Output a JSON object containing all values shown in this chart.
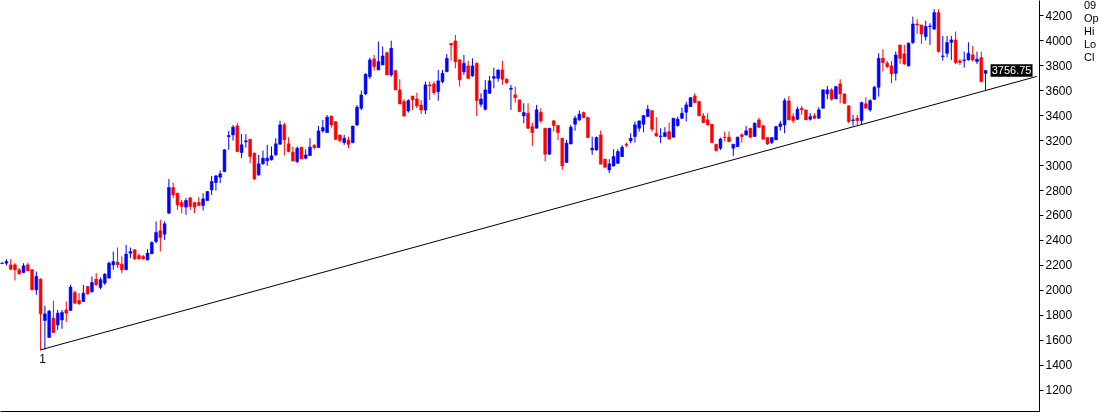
{
  "chart_data": {
    "type": "candlestick",
    "categories": [
      null,
      null,
      null,
      null,
      null,
      null,
      null,
      null,
      null,
      null,
      null,
      null,
      null,
      null,
      null,
      null,
      null,
      null,
      null,
      null,
      null,
      null,
      null,
      null,
      null,
      null,
      null,
      null,
      null,
      null,
      null,
      null,
      null,
      null,
      null,
      null,
      null,
      null,
      null,
      null,
      null,
      null,
      null,
      null,
      null,
      null,
      null,
      null,
      null,
      null,
      null,
      null,
      null,
      null,
      null,
      null,
      null,
      null,
      null,
      null,
      null,
      null,
      null,
      null,
      null,
      null,
      null,
      null,
      null,
      null,
      null,
      null,
      null,
      null,
      null,
      null,
      null,
      null,
      null,
      null,
      null,
      null,
      null,
      null,
      null,
      null,
      null,
      null,
      null,
      null,
      null,
      null,
      null,
      null,
      null,
      null,
      null,
      null,
      null,
      null,
      null,
      null,
      null,
      null,
      null,
      null,
      null,
      null,
      null,
      null,
      null,
      null,
      null,
      null,
      null,
      null,
      null,
      null,
      null,
      null,
      null,
      null,
      null,
      null,
      null,
      null,
      null,
      null,
      null,
      null,
      null,
      null,
      null,
      null,
      null,
      null,
      null,
      null,
      null,
      null,
      null,
      null,
      null,
      null,
      null,
      null,
      null,
      null,
      null,
      null,
      null,
      null,
      null,
      null,
      null,
      null,
      null,
      null,
      null,
      null,
      null,
      null,
      null,
      null,
      null,
      null,
      null,
      null,
      null,
      null,
      null,
      null,
      null,
      null,
      null,
      null,
      null,
      null,
      null,
      null,
      null,
      null,
      null,
      null,
      null,
      null,
      null,
      null,
      null,
      null,
      null,
      null,
      null,
      null,
      null,
      null,
      null,
      null,
      null,
      null,
      null,
      null,
      null,
      null,
      null,
      null,
      null,
      null,
      null,
      null,
      null,
      null,
      null,
      null,
      null,
      null,
      null,
      null,
      null,
      null,
      null,
      null,
      null,
      null,
      null,
      null,
      null,
      null,
      null,
      null,
      null,
      null,
      null,
      null,
      null,
      null,
      null,
      null,
      null,
      null,
      null,
      null,
      null
    ],
    "ohlc": [
      [
        2212,
        2220,
        2208,
        2215
      ],
      [
        2214,
        2246,
        2195,
        2228
      ],
      [
        2200,
        2246,
        2160,
        2166
      ],
      [
        2201,
        2214,
        2075,
        2161
      ],
      [
        2161,
        2174,
        2121,
        2129
      ],
      [
        2139,
        2214,
        2134,
        2193
      ],
      [
        2201,
        2219,
        2147,
        2155
      ],
      [
        2161,
        2168,
        1998,
        2001
      ],
      [
        2001,
        2147,
        1961,
        2108
      ],
      [
        2086,
        2094,
        1515,
        1808
      ],
      [
        1755,
        1873,
        1521,
        1808
      ],
      [
        1619,
        1840,
        1619,
        1830
      ],
      [
        1774,
        1913,
        1654,
        1659
      ],
      [
        1720,
        1840,
        1680,
        1814
      ],
      [
        1760,
        1840,
        1688,
        1819
      ],
      [
        1840,
        1907,
        1742,
        1814
      ],
      [
        1835,
        2041,
        1835,
        2022
      ],
      [
        1979,
        1995,
        1889,
        1894
      ],
      [
        1915,
        1974,
        1881,
        1889
      ],
      [
        1907,
        2041,
        1907,
        1974
      ],
      [
        2027,
        2033,
        1961,
        1969
      ],
      [
        1987,
        2107,
        1974,
        2059
      ],
      [
        2086,
        2134,
        2033,
        2041
      ],
      [
        2020,
        2100,
        2005,
        2081
      ],
      [
        2054,
        2134,
        2040,
        2126
      ],
      [
        2094,
        2227,
        2094,
        2214
      ],
      [
        2201,
        2307,
        2161,
        2227
      ],
      [
        2222,
        2339,
        2174,
        2201
      ],
      [
        2206,
        2267,
        2134,
        2161
      ],
      [
        2161,
        2361,
        2161,
        2286
      ],
      [
        2294,
        2339,
        2254,
        2307
      ],
      [
        2321,
        2326,
        2241,
        2249
      ],
      [
        2275,
        2290,
        2241,
        2249
      ],
      [
        2267,
        2280,
        2241,
        2249
      ],
      [
        2241,
        2326,
        2236,
        2294
      ],
      [
        2289,
        2388,
        2289,
        2380
      ],
      [
        2388,
        2548,
        2374,
        2460
      ],
      [
        2473,
        2561,
        2308,
        2420
      ],
      [
        2446,
        2548,
        2400,
        2529
      ],
      [
        2615,
        2889,
        2609,
        2820
      ],
      [
        2820,
        2860,
        2735,
        2761
      ],
      [
        2775,
        2775,
        2641,
        2681
      ],
      [
        2700,
        2721,
        2615,
        2668
      ],
      [
        2663,
        2735,
        2601,
        2716
      ],
      [
        2737,
        2743,
        2641,
        2668
      ],
      [
        2700,
        2700,
        2615,
        2663
      ],
      [
        2700,
        2743,
        2676,
        2676
      ],
      [
        2676,
        2775,
        2636,
        2729
      ],
      [
        2716,
        2788,
        2716,
        2788
      ],
      [
        2801,
        2913,
        2761,
        2868
      ],
      [
        2860,
        2921,
        2796,
        2913
      ],
      [
        2903,
        2956,
        2855,
        2929
      ],
      [
        2948,
        3127,
        2943,
        3122
      ],
      [
        3228,
        3274,
        3122,
        3236
      ],
      [
        3242,
        3322,
        3196,
        3303
      ],
      [
        3314,
        3340,
        3108,
        3108
      ],
      [
        3100,
        3247,
        3055,
        3162
      ],
      [
        3186,
        3247,
        3140,
        3194
      ],
      [
        3207,
        3207,
        3015,
        3068
      ],
      [
        3095,
        3100,
        2881,
        2889
      ],
      [
        2921,
        3082,
        2913,
        3010
      ],
      [
        3010,
        3116,
        3002,
        3055
      ],
      [
        3034,
        3162,
        2993,
        3055
      ],
      [
        3042,
        3148,
        3036,
        3074
      ],
      [
        3082,
        3215,
        3074,
        3170
      ],
      [
        3167,
        3354,
        3162,
        3322
      ],
      [
        3322,
        3340,
        3076,
        3202
      ],
      [
        3170,
        3223,
        3103,
        3108
      ],
      [
        3103,
        3148,
        3028,
        3034
      ],
      [
        3028,
        3148,
        3015,
        3135
      ],
      [
        3143,
        3143,
        3046,
        3049
      ],
      [
        3054,
        3126,
        3046,
        3081
      ],
      [
        3076,
        3215,
        3073,
        3143
      ],
      [
        3156,
        3169,
        3126,
        3140
      ],
      [
        3140,
        3313,
        3140,
        3273
      ],
      [
        3273,
        3361,
        3260,
        3300
      ],
      [
        3260,
        3401,
        3260,
        3383
      ],
      [
        3393,
        3393,
        3300,
        3321
      ],
      [
        3348,
        3348,
        3201,
        3207
      ],
      [
        3241,
        3241,
        3180,
        3196
      ],
      [
        3180,
        3241,
        3161,
        3215
      ],
      [
        3201,
        3228,
        3134,
        3166
      ],
      [
        3180,
        3313,
        3174,
        3313
      ],
      [
        3321,
        3481,
        3313,
        3463
      ],
      [
        3455,
        3596,
        3441,
        3561
      ],
      [
        3570,
        3735,
        3561,
        3727
      ],
      [
        3708,
        3860,
        3690,
        3842
      ],
      [
        3850,
        3882,
        3756,
        3788
      ],
      [
        3762,
        3989,
        3762,
        3828
      ],
      [
        3802,
        3949,
        3802,
        3874
      ],
      [
        3900,
        3908,
        3722,
        3722
      ],
      [
        3722,
        3997,
        3708,
        3935
      ],
      [
        3756,
        3762,
        3602,
        3602
      ],
      [
        3602,
        3687,
        3489,
        3489
      ],
      [
        3508,
        3527,
        3388,
        3393
      ],
      [
        3433,
        3527,
        3420,
        3516
      ],
      [
        3553,
        3553,
        3441,
        3521
      ],
      [
        3529,
        3580,
        3455,
        3473
      ],
      [
        3481,
        3521,
        3409,
        3441
      ],
      [
        3441,
        3668,
        3409,
        3642
      ],
      [
        3642,
        3668,
        3521,
        3634
      ],
      [
        3650,
        3668,
        3561,
        3580
      ],
      [
        3588,
        3762,
        3516,
        3674
      ],
      [
        3668,
        3762,
        3655,
        3735
      ],
      [
        3748,
        3890,
        3743,
        3855
      ],
      [
        3975,
        3975,
        3836,
        3962
      ],
      [
        3994,
        4042,
        3775,
        3828
      ],
      [
        3842,
        3847,
        3628,
        3682
      ],
      [
        3748,
        3882,
        3722,
        3815
      ],
      [
        3794,
        3834,
        3687,
        3695
      ],
      [
        3714,
        3855,
        3708,
        3794
      ],
      [
        3815,
        3823,
        3393,
        3516
      ],
      [
        3487,
        3575,
        3463,
        3529
      ],
      [
        3447,
        3682,
        3436,
        3602
      ],
      [
        3575,
        3714,
        3570,
        3674
      ],
      [
        3695,
        3780,
        3615,
        3708
      ],
      [
        3695,
        3762,
        3668,
        3762
      ],
      [
        3762,
        3834,
        3642,
        3687
      ],
      [
        3687,
        3695,
        3650,
        3660
      ],
      [
        3607,
        3642,
        3442,
        3615
      ],
      [
        3562,
        3628,
        3500,
        3540
      ],
      [
        3522,
        3522,
        3428,
        3428
      ],
      [
        3394,
        3495,
        3335,
        3420
      ],
      [
        3415,
        3495,
        3287,
        3295
      ],
      [
        3308,
        3340,
        3153,
        3260
      ],
      [
        3295,
        3482,
        3295,
        3442
      ],
      [
        3423,
        3455,
        3335,
        3354
      ],
      [
        3295,
        3295,
        3028,
        3087
      ],
      [
        3087,
        3295,
        3081,
        3295
      ],
      [
        3354,
        3362,
        3268,
        3316
      ],
      [
        3316,
        3322,
        3201,
        3260
      ],
      [
        3215,
        3215,
        2961,
        2993
      ],
      [
        3020,
        3201,
        3020,
        3175
      ],
      [
        3169,
        3322,
        3167,
        3303
      ],
      [
        3327,
        3396,
        3276,
        3375
      ],
      [
        3362,
        3436,
        3354,
        3407
      ],
      [
        3420,
        3428,
        3375,
        3380
      ],
      [
        3380,
        3388,
        3220,
        3220
      ],
      [
        3121,
        3228,
        3081,
        3135
      ],
      [
        3121,
        3228,
        3116,
        3220
      ],
      [
        3241,
        3276,
        3007,
        3007
      ],
      [
        3047,
        3047,
        2975,
        2983
      ],
      [
        2961,
        3047,
        2935,
        3009
      ],
      [
        2993,
        3127,
        2988,
        3068
      ],
      [
        3015,
        3127,
        3009,
        3108
      ],
      [
        3068,
        3161,
        3063,
        3143
      ],
      [
        3167,
        3180,
        3143,
        3159
      ],
      [
        3193,
        3255,
        3175,
        3215
      ],
      [
        3228,
        3348,
        3180,
        3322
      ],
      [
        3295,
        3354,
        3268,
        3354
      ],
      [
        3327,
        3402,
        3263,
        3396
      ],
      [
        3388,
        3482,
        3388,
        3447
      ],
      [
        3436,
        3436,
        3268,
        3287
      ],
      [
        3255,
        3383,
        3228,
        3233
      ],
      [
        3228,
        3295,
        3175,
        3233
      ],
      [
        3228,
        3303,
        3228,
        3260
      ],
      [
        3268,
        3340,
        3201,
        3210
      ],
      [
        3223,
        3375,
        3223,
        3375
      ],
      [
        3316,
        3388,
        3308,
        3367
      ],
      [
        3375,
        3460,
        3367,
        3415
      ],
      [
        3423,
        3508,
        3348,
        3482
      ],
      [
        3468,
        3540,
        3468,
        3540
      ],
      [
        3554,
        3575,
        3495,
        3500
      ],
      [
        3508,
        3516,
        3394,
        3394
      ],
      [
        3394,
        3415,
        3335,
        3340
      ],
      [
        3362,
        3415,
        3316,
        3322
      ],
      [
        3327,
        3327,
        3175,
        3180
      ],
      [
        3167,
        3167,
        3108,
        3116
      ],
      [
        3135,
        3220,
        3121,
        3209
      ],
      [
        3223,
        3268,
        3188,
        3220
      ],
      [
        3223,
        3268,
        3183,
        3188
      ],
      [
        3135,
        3167,
        3073,
        3167
      ],
      [
        3148,
        3228,
        3143,
        3223
      ],
      [
        3242,
        3255,
        3180,
        3228
      ],
      [
        3242,
        3314,
        3234,
        3274
      ],
      [
        3295,
        3295,
        3215,
        3223
      ],
      [
        3228,
        3340,
        3228,
        3335
      ],
      [
        3362,
        3380,
        3295,
        3303
      ],
      [
        3314,
        3322,
        3207,
        3207
      ],
      [
        3220,
        3220,
        3161,
        3169
      ],
      [
        3180,
        3220,
        3169,
        3220
      ],
      [
        3202,
        3314,
        3202,
        3308
      ],
      [
        3308,
        3354,
        3276,
        3330
      ],
      [
        3322,
        3535,
        3255,
        3516
      ],
      [
        3514,
        3554,
        3362,
        3362
      ],
      [
        3388,
        3415,
        3335,
        3356
      ],
      [
        3367,
        3468,
        3362,
        3447
      ],
      [
        3455,
        3474,
        3402,
        3442
      ],
      [
        3442,
        3442,
        3362,
        3362
      ],
      [
        3367,
        3415,
        3356,
        3388
      ],
      [
        3394,
        3415,
        3367,
        3375
      ],
      [
        3375,
        3463,
        3370,
        3442
      ],
      [
        3455,
        3607,
        3455,
        3602
      ],
      [
        3570,
        3634,
        3527,
        3602
      ],
      [
        3602,
        3615,
        3516,
        3527
      ],
      [
        3530,
        3634,
        3530,
        3628
      ],
      [
        3650,
        3687,
        3495,
        3570
      ],
      [
        3570,
        3570,
        3490,
        3495
      ],
      [
        3474,
        3479,
        3335,
        3348
      ],
      [
        3356,
        3402,
        3314,
        3362
      ],
      [
        3375,
        3402,
        3322,
        3356
      ],
      [
        3356,
        3508,
        3322,
        3500
      ],
      [
        3490,
        3543,
        3455,
        3455
      ],
      [
        3442,
        3527,
        3428,
        3516
      ],
      [
        3527,
        3634,
        3522,
        3623
      ],
      [
        3623,
        3895,
        3548,
        3855
      ],
      [
        3855,
        3927,
        3749,
        3821
      ],
      [
        3815,
        3834,
        3775,
        3789
      ],
      [
        3794,
        3834,
        3655,
        3730
      ],
      [
        3735,
        3909,
        3677,
        3882
      ],
      [
        3962,
        3962,
        3810,
        3855
      ],
      [
        3890,
        3962,
        3802,
        3810
      ],
      [
        3794,
        3981,
        3789,
        3976
      ],
      [
        3981,
        4189,
        3970,
        4130
      ],
      [
        4130,
        4168,
        4050,
        4122
      ],
      [
        4122,
        4122,
        3970,
        4050
      ],
      [
        4029,
        4157,
        3997,
        4109
      ],
      [
        4109,
        4136,
        3962,
        4114
      ],
      [
        4088,
        4248,
        4088,
        4221
      ],
      [
        4221,
        4248,
        3901,
        3909
      ],
      [
        3869,
        4034,
        3837,
        3874
      ],
      [
        3895,
        4034,
        3863,
        3981
      ],
      [
        3983,
        4034,
        3842,
        4002
      ],
      [
        4002,
        4069,
        3810,
        3821
      ],
      [
        3834,
        3847,
        3802,
        3821
      ],
      [
        3837,
        3909,
        3781,
        3842
      ],
      [
        3842,
        3983,
        3837,
        3895
      ],
      [
        3882,
        3954,
        3829,
        3842
      ],
      [
        3829,
        3909,
        3810,
        3847
      ],
      [
        3861,
        3909,
        3661,
        3669
      ],
      [
        3735,
        3762,
        3596,
        3756.75
      ],
      null,
      null,
      null,
      null,
      null,
      null,
      null,
      null,
      null,
      null,
      null,
      null
    ],
    "colors": [
      "#0000ff",
      "#0000ff",
      "#ff0000",
      "#ff0000",
      "#ff0000",
      "#0000ff",
      "#ff0000",
      "#ff0000",
      "#0000ff",
      "#ff0000",
      "#0000ff",
      "#0000ff",
      "#ff0000",
      "#0000ff",
      "#0000ff",
      "#ff0000",
      "#0000ff",
      "#ff0000",
      "#ff0000",
      "#0000ff",
      "#ff0000",
      "#0000ff",
      "#ff0000",
      "#0000ff",
      "#0000ff",
      "#0000ff",
      "#0000ff",
      "#ff0000",
      "#ff0000",
      "#0000ff",
      "#0000ff",
      "#ff0000",
      "#ff0000",
      "#ff0000",
      "#0000ff",
      "#0000ff",
      "#0000ff",
      "#ff0000",
      "#0000ff",
      "#0000ff",
      "#ff0000",
      "#ff0000",
      "#ff0000",
      "#0000ff",
      "#ff0000",
      "#ff0000",
      "#ff0000",
      "#0000ff",
      "#0000ff",
      "#0000ff",
      "#0000ff",
      "#0000ff",
      "#0000ff",
      "#0000ff",
      "#0000ff",
      "#ff0000",
      "#0000ff",
      "#0000ff",
      "#ff0000",
      "#ff0000",
      "#0000ff",
      "#0000ff",
      "#0000ff",
      "#0000ff",
      "#0000ff",
      "#0000ff",
      "#ff0000",
      "#ff0000",
      "#ff0000",
      "#0000ff",
      "#ff0000",
      "#0000ff",
      "#0000ff",
      "#ff0000",
      "#0000ff",
      "#0000ff",
      "#0000ff",
      "#ff0000",
      "#ff0000",
      "#ff0000",
      "#0000ff",
      "#ff0000",
      "#0000ff",
      "#0000ff",
      "#0000ff",
      "#0000ff",
      "#0000ff",
      "#ff0000",
      "#0000ff",
      "#0000ff",
      "#ff0000",
      "#0000ff",
      "#ff0000",
      "#ff0000",
      "#ff0000",
      "#0000ff",
      "#ff0000",
      "#ff0000",
      "#ff0000",
      "#0000ff",
      "#ff0000",
      "#ff0000",
      "#0000ff",
      "#0000ff",
      "#0000ff",
      "#ff0000",
      "#ff0000",
      "#ff0000",
      "#0000ff",
      "#ff0000",
      "#0000ff",
      "#ff0000",
      "#0000ff",
      "#0000ff",
      "#0000ff",
      "#0000ff",
      "#0000ff",
      "#ff0000",
      "#ff0000",
      "#0000ff",
      "#ff0000",
      "#ff0000",
      "#0000ff",
      "#ff0000",
      "#ff0000",
      "#0000ff",
      "#ff0000",
      "#ff0000",
      "#0000ff",
      "#ff0000",
      "#ff0000",
      "#ff0000",
      "#0000ff",
      "#0000ff",
      "#0000ff",
      "#0000ff",
      "#ff0000",
      "#ff0000",
      "#0000ff",
      "#0000ff",
      "#ff0000",
      "#ff0000",
      "#0000ff",
      "#0000ff",
      "#0000ff",
      "#0000ff",
      "#ff0000",
      "#0000ff",
      "#0000ff",
      "#0000ff",
      "#0000ff",
      "#0000ff",
      "#ff0000",
      "#ff0000",
      "#0000ff",
      "#0000ff",
      "#ff0000",
      "#0000ff",
      "#0000ff",
      "#0000ff",
      "#0000ff",
      "#0000ff",
      "#ff0000",
      "#ff0000",
      "#ff0000",
      "#ff0000",
      "#ff0000",
      "#ff0000",
      "#0000ff",
      "#ff0000",
      "#ff0000",
      "#0000ff",
      "#0000ff",
      "#ff0000",
      "#0000ff",
      "#ff0000",
      "#0000ff",
      "#ff0000",
      "#ff0000",
      "#ff0000",
      "#0000ff",
      "#0000ff",
      "#0000ff",
      "#0000ff",
      "#ff0000",
      "#ff0000",
      "#0000ff",
      "#ff0000",
      "#ff0000",
      "#0000ff",
      "#ff0000",
      "#0000ff",
      "#0000ff",
      "#0000ff",
      "#ff0000",
      "#0000ff",
      "#ff0000",
      "#ff0000",
      "#ff0000",
      "#0000ff",
      "#ff0000",
      "#0000ff",
      "#ff0000",
      "#0000ff",
      "#0000ff",
      "#0000ff",
      "#ff0000",
      "#ff0000",
      "#ff0000",
      "#0000ff",
      "#ff0000",
      "#ff0000",
      "#0000ff",
      "#0000ff",
      "#ff0000",
      "#ff0000",
      "#0000ff",
      "#0000ff",
      "#0000ff",
      "#ff0000",
      "#0000ff",
      "#0000ff",
      "#0000ff",
      "#ff0000",
      "#ff0000",
      "#0000ff",
      "#0000ff",
      "#ff0000",
      "#0000ff",
      "#ff0000",
      "#0000ff",
      null,
      null,
      null,
      null,
      null,
      null,
      null,
      null,
      null,
      null,
      null,
      null
    ],
    "series": [
      {
        "type": "line",
        "color": "#000000",
        "values": [
          null,
          null,
          null,
          null,
          null,
          null,
          null,
          null,
          null,
          1520,
          null,
          null,
          null,
          null,
          null,
          null,
          null,
          null,
          null,
          null,
          null,
          null,
          null,
          null,
          null,
          null,
          null,
          null,
          null,
          null,
          null,
          null,
          null,
          null,
          null,
          null,
          null,
          null,
          null,
          null,
          null,
          null,
          null,
          null,
          null,
          null,
          null,
          null,
          null,
          null,
          null,
          null,
          null,
          null,
          null,
          null,
          null,
          null,
          null,
          null,
          null,
          null,
          null,
          null,
          null,
          null,
          null,
          null,
          null,
          null,
          null,
          null,
          null,
          null,
          null,
          null,
          null,
          null,
          null,
          null,
          null,
          null,
          null,
          null,
          null,
          null,
          null,
          null,
          null,
          null,
          null,
          null,
          null,
          null,
          null,
          null,
          null,
          null,
          null,
          null,
          null,
          null,
          null,
          null,
          null,
          null,
          null,
          null,
          null,
          null,
          null,
          null,
          null,
          null,
          null,
          null,
          null,
          null,
          null,
          null,
          null,
          null,
          null,
          null,
          null,
          null,
          null,
          null,
          null,
          null,
          null,
          null,
          null,
          null,
          null,
          null,
          null,
          null,
          null,
          null,
          null,
          null,
          null,
          null,
          null,
          null,
          null,
          null,
          null,
          null,
          null,
          null,
          null,
          null,
          null,
          null,
          null,
          null,
          null,
          null,
          null,
          null,
          null,
          null,
          null,
          null,
          null,
          null,
          null,
          null,
          null,
          null,
          null,
          null,
          null,
          null,
          null,
          null,
          null,
          null,
          null,
          null,
          null,
          null,
          null,
          null,
          null,
          null,
          null,
          null,
          null,
          null,
          null,
          null,
          null,
          null,
          null,
          null,
          null,
          null,
          null,
          null,
          null,
          null,
          null,
          null,
          null,
          null,
          null,
          null,
          null,
          null,
          null,
          null,
          null,
          null,
          null,
          null,
          null,
          null,
          null,
          null,
          null,
          null,
          null,
          null,
          null,
          null,
          null,
          null,
          null,
          null,
          null,
          null,
          null,
          null,
          null,
          null,
          null,
          null,
          null,
          null,
          3710
        ]
      }
    ],
    "ylim": [
      1030,
      4322
    ],
    "yticks": [
      1200,
      1400,
      1600,
      1800,
      2000,
      2200,
      2400,
      2600,
      2800,
      3000,
      3200,
      3400,
      3600,
      3800,
      4000,
      4200
    ],
    "tick_labels": "y",
    "annotations": [
      "09",
      "Op",
      "Hi",
      "Lo",
      "Cl",
      {
        "text": "1",
        "y": 1515
      },
      {
        "text": "3756.75",
        "y": 3756.75
      }
    ]
  }
}
